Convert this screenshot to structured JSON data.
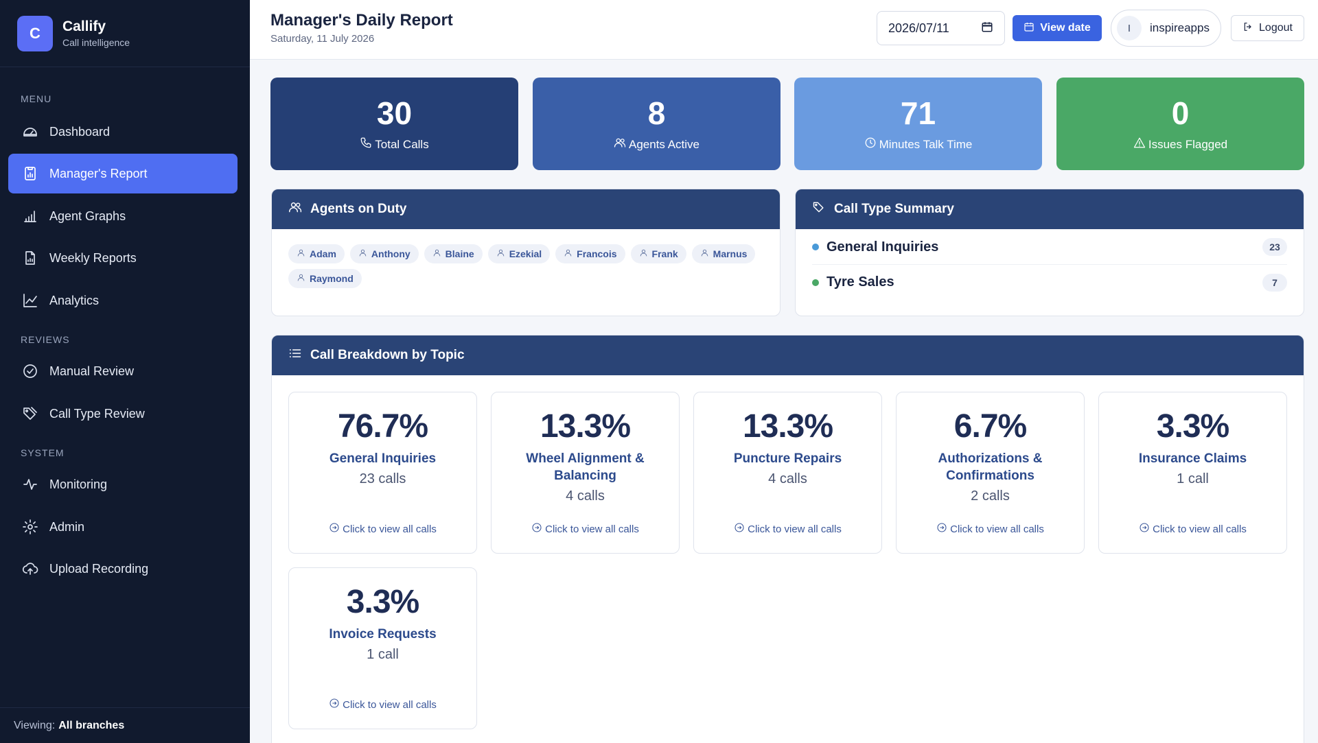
{
  "app": {
    "logo_letter": "C",
    "name": "Callify",
    "subtitle": "Call intelligence"
  },
  "sidebar": {
    "sections": {
      "menu": "MENU",
      "reviews": "REVIEWS",
      "system": "SYSTEM"
    },
    "items": [
      {
        "label": "Dashboard",
        "icon": "dashboard-gauge-icon"
      },
      {
        "label": "Manager's Report",
        "icon": "report-icon",
        "active": true
      },
      {
        "label": "Agent Graphs",
        "icon": "bar-chart-icon"
      },
      {
        "label": "Weekly Reports",
        "icon": "file-chart-icon"
      },
      {
        "label": "Analytics",
        "icon": "line-chart-icon"
      },
      {
        "label": "Manual Review",
        "icon": "check-circle-icon"
      },
      {
        "label": "Call Type Review",
        "icon": "tags-icon"
      },
      {
        "label": "Monitoring",
        "icon": "activity-icon"
      },
      {
        "label": "Admin",
        "icon": "gear-icon"
      },
      {
        "label": "Upload Recording",
        "icon": "cloud-upload-icon"
      }
    ],
    "footer": {
      "prefix": "Viewing:",
      "value": "All branches"
    }
  },
  "header": {
    "title": "Manager's Daily Report",
    "date": "Saturday, 11 July 2026",
    "date_input_value": "2026/07/11",
    "view_date_label": "View date",
    "user_initial": "I",
    "user_name": "inspireapps",
    "logout_label": "Logout"
  },
  "stats": [
    {
      "value": "30",
      "label": "Total Calls",
      "icon": "phone-icon",
      "color": "#253f75"
    },
    {
      "value": "8",
      "label": "Agents Active",
      "icon": "users-icon",
      "color": "#3a5fa8"
    },
    {
      "value": "71",
      "label": "Minutes Talk Time",
      "icon": "clock-icon",
      "color": "#6a9be0"
    },
    {
      "value": "0",
      "label": "Issues Flagged",
      "icon": "warning-icon",
      "color": "#4aa866"
    }
  ],
  "agents_panel": {
    "title": "Agents on Duty",
    "agents": [
      "Adam",
      "Anthony",
      "Blaine",
      "Ezekial",
      "Francois",
      "Frank",
      "Marnus",
      "Raymond"
    ]
  },
  "call_type_panel": {
    "title": "Call Type Summary",
    "rows": [
      {
        "name": "General Inquiries",
        "count": "23",
        "color": "#4a9ad8"
      },
      {
        "name": "Tyre Sales",
        "count": "7",
        "color": "#4aa866"
      }
    ]
  },
  "breakdown_panel": {
    "title": "Call Breakdown by Topic",
    "link_label": "Click to view all calls",
    "topics": [
      {
        "pct": "76.7%",
        "name": "General Inquiries",
        "calls": "23 calls"
      },
      {
        "pct": "13.3%",
        "name": "Wheel Alignment & Balancing",
        "calls": "4 calls"
      },
      {
        "pct": "13.3%",
        "name": "Puncture Repairs",
        "calls": "4 calls"
      },
      {
        "pct": "6.7%",
        "name": "Authorizations & Confirmations",
        "calls": "2 calls"
      },
      {
        "pct": "3.3%",
        "name": "Insurance Claims",
        "calls": "1 call"
      },
      {
        "pct": "3.3%",
        "name": "Invoice Requests",
        "calls": "1 call"
      }
    ]
  }
}
